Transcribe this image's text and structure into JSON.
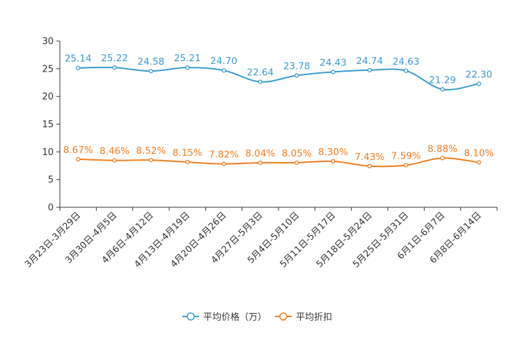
{
  "chart_data": {
    "type": "line",
    "title": "",
    "xlabel": "",
    "ylabel": "",
    "ylim": [
      0,
      30
    ],
    "yticks": [
      0,
      5,
      10,
      15,
      20,
      25,
      30
    ],
    "grid": false,
    "legend_position": "bottom-center",
    "categories": [
      "3月23日-3月29日",
      "3月30日-4月5日",
      "4月6日-4月12日",
      "4月13日-4月19日",
      "4月20日-4月26日",
      "4月27日-5月3日",
      "5月4日-5月10日",
      "5月11日-5月17日",
      "5月18日-5月24日",
      "5月25日-5月31日",
      "6月1日-6月7日",
      "6月8日-6月14日"
    ],
    "series": [
      {
        "name": "平均价格（万）",
        "color": "#3a9bd0",
        "values": [
          25.14,
          25.22,
          24.58,
          25.21,
          24.7,
          22.64,
          23.78,
          24.43,
          24.74,
          24.63,
          21.29,
          22.3
        ],
        "labels": [
          "25.14",
          "25.22",
          "24.58",
          "25.21",
          "24.70",
          "22.64",
          "23.78",
          "24.43",
          "24.74",
          "24.63",
          "21.29",
          "22.30"
        ]
      },
      {
        "name": "平均折扣",
        "color": "#f07d1e",
        "values": [
          8.67,
          8.46,
          8.52,
          8.15,
          7.82,
          8.04,
          8.05,
          8.3,
          7.43,
          7.59,
          8.88,
          8.1
        ],
        "labels": [
          "8.67%",
          "8.46%",
          "8.52%",
          "8.15%",
          "7.82%",
          "8.04%",
          "8.05%",
          "8.30%",
          "7.43%",
          "7.59%",
          "8.88%",
          "8.10%"
        ]
      }
    ]
  }
}
